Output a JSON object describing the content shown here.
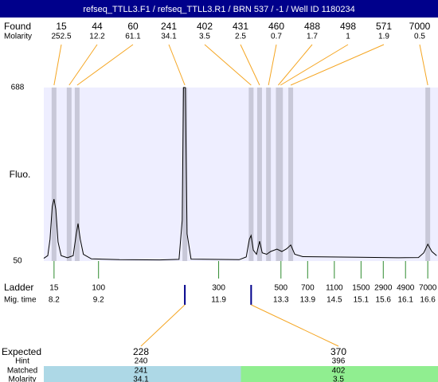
{
  "chart_data": {
    "type": "line",
    "title": "refseq_TTLL3.F1 / refseq_TTLL3.R1 / BRN 537 / -1 / Well ID 1180234",
    "ylabel": "Fluo.",
    "ylim": [
      50,
      688
    ],
    "yticks": [
      50,
      688
    ],
    "xlim": [
      7.97,
      16.83
    ],
    "color": "#000000",
    "x": [
      7.97,
      8.06,
      8.11,
      8.16,
      8.2,
      8.24,
      8.29,
      8.36,
      8.5,
      8.63,
      8.7,
      8.74,
      8.79,
      8.86,
      9.04,
      9.67,
      10.57,
      11.01,
      11.08,
      11.11,
      11.15,
      11.19,
      11.28,
      12.36,
      12.52,
      12.59,
      12.63,
      12.68,
      12.75,
      12.82,
      12.88,
      12.98,
      13.07,
      13.21,
      13.32,
      13.43,
      13.52,
      13.61,
      13.79,
      15.05,
      15.94,
      16.39,
      16.51,
      16.6,
      16.69,
      16.8
    ],
    "values": [
      60,
      70,
      130,
      250,
      278,
      240,
      120,
      70,
      62,
      70,
      150,
      188,
      130,
      75,
      58,
      55,
      54,
      56,
      200,
      688,
      688,
      150,
      57,
      55,
      65,
      130,
      144,
      90,
      75,
      123,
      80,
      75,
      85,
      94,
      85,
      95,
      109,
      75,
      66,
      64,
      62,
      63,
      80,
      112,
      85,
      70
    ],
    "found": {
      "label": "Found",
      "molarity_label": "Molarity",
      "sizes": [
        15,
        44,
        60,
        241,
        402,
        431,
        460,
        488,
        498,
        571,
        7000
      ],
      "molarity": [
        252.5,
        12.2,
        61.1,
        34.1,
        3.5,
        2.5,
        0.7,
        1.7,
        1,
        1.9,
        0.5
      ],
      "x": [
        8.2,
        8.54,
        8.72,
        11.14,
        12.63,
        12.82,
        13.02,
        13.24,
        13.29,
        13.52,
        16.6
      ]
    },
    "ladder": {
      "label": "Ladder",
      "time_label": "Mig. time",
      "sizes": [
        15,
        100,
        300,
        500,
        700,
        1100,
        1500,
        2900,
        4900,
        7000
      ],
      "times": [
        8.2,
        9.2,
        11.9,
        13.3,
        13.9,
        14.5,
        15.1,
        15.6,
        16.1,
        16.6
      ]
    },
    "expected": {
      "labels": [
        "Expected",
        "Hint",
        "Matched",
        "Molarity"
      ],
      "columns": [
        {
          "expected": 228,
          "hint": 240,
          "matched": 241,
          "molarity": 34.1,
          "color": "#add8e6"
        },
        {
          "expected": 370,
          "hint": 396,
          "matched": 402,
          "molarity": 3.5,
          "color": "#90ee90"
        }
      ]
    }
  }
}
